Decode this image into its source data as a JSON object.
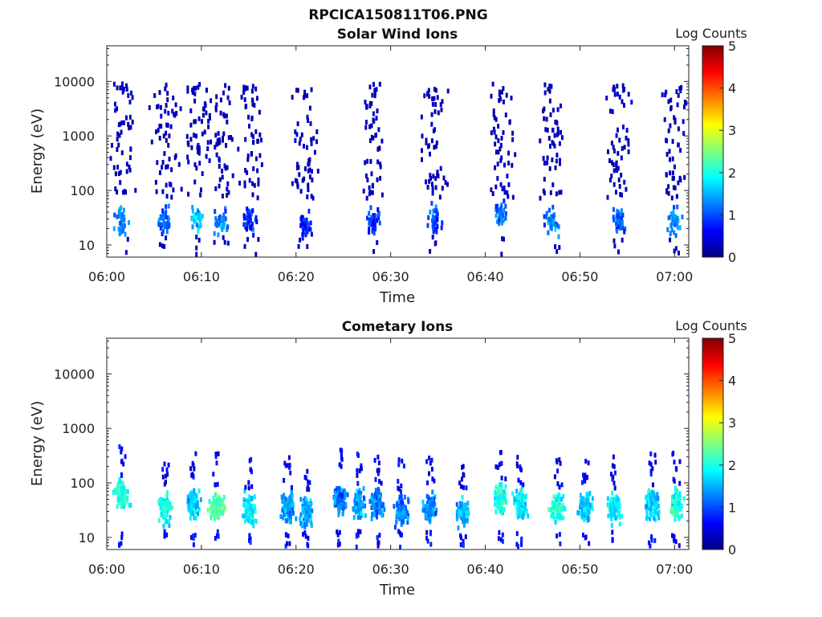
{
  "figure": {
    "title": "RPCICA150811T06.PNG"
  },
  "colormap": {
    "name": "jet",
    "stops": [
      "#00007f",
      "#0000ff",
      "#007fff",
      "#00ffff",
      "#7fff7f",
      "#ffff00",
      "#ff7f00",
      "#ff0000",
      "#7f0000"
    ]
  },
  "chart_data": [
    {
      "type": "heatmap",
      "title": "Solar Wind Ions",
      "xlabel": "Time",
      "ylabel": "Energy (eV)",
      "yscale": "log",
      "ylim": [
        6,
        45000
      ],
      "xlim_minutes": [
        0,
        61.5
      ],
      "xticks": [
        "06:00",
        "06:10",
        "06:20",
        "06:30",
        "06:40",
        "06:50",
        "07:00"
      ],
      "yticks": [
        "10",
        "100",
        "1000",
        "10000"
      ],
      "ytick_values": [
        10,
        100,
        1000,
        10000
      ],
      "colorbar": {
        "label": "Log Counts",
        "range": [
          0,
          5
        ],
        "ticks": [
          "0",
          "1",
          "2",
          "3",
          "4",
          "5"
        ]
      },
      "bursts": [
        {
          "t_min": 1.5,
          "energy_eV": 30,
          "log_counts": 1.3
        },
        {
          "t_min": 6.0,
          "energy_eV": 30,
          "log_counts": 1.1
        },
        {
          "t_min": 9.5,
          "energy_eV": 35,
          "log_counts": 1.6
        },
        {
          "t_min": 12.0,
          "energy_eV": 30,
          "log_counts": 1.2
        },
        {
          "t_min": 15.0,
          "energy_eV": 30,
          "log_counts": 0.8
        },
        {
          "t_min": 20.8,
          "energy_eV": 25,
          "log_counts": 0.7
        },
        {
          "t_min": 28.0,
          "energy_eV": 30,
          "log_counts": 0.8
        },
        {
          "t_min": 34.5,
          "energy_eV": 35,
          "log_counts": 1.0
        },
        {
          "t_min": 41.5,
          "energy_eV": 40,
          "log_counts": 1.2
        },
        {
          "t_min": 47.0,
          "energy_eV": 30,
          "log_counts": 1.2
        },
        {
          "t_min": 54.0,
          "energy_eV": 35,
          "log_counts": 1.0
        },
        {
          "t_min": 60.0,
          "energy_eV": 30,
          "log_counts": 1.3
        }
      ]
    },
    {
      "type": "heatmap",
      "title": "Cometary Ions",
      "xlabel": "Time",
      "ylabel": "Energy (eV)",
      "yscale": "log",
      "ylim": [
        6,
        45000
      ],
      "xlim_minutes": [
        0,
        61.5
      ],
      "xticks": [
        "06:00",
        "06:10",
        "06:20",
        "06:30",
        "06:40",
        "06:50",
        "07:00"
      ],
      "yticks": [
        "10",
        "100",
        "1000",
        "10000"
      ],
      "ytick_values": [
        10,
        100,
        1000,
        10000
      ],
      "colorbar": {
        "label": "Log Counts",
        "range": [
          0,
          5
        ],
        "ticks": [
          "0",
          "1",
          "2",
          "3",
          "4",
          "5"
        ]
      },
      "bursts": [
        {
          "t_min": 1.5,
          "energy_eV": 60,
          "log_counts": 2.0
        },
        {
          "t_min": 6.0,
          "energy_eV": 35,
          "log_counts": 1.9
        },
        {
          "t_min": 9.0,
          "energy_eV": 40,
          "log_counts": 1.7
        },
        {
          "t_min": 11.5,
          "energy_eV": 40,
          "log_counts": 2.3
        },
        {
          "t_min": 15.0,
          "energy_eV": 30,
          "log_counts": 1.8
        },
        {
          "t_min": 19.0,
          "energy_eV": 35,
          "log_counts": 1.3
        },
        {
          "t_min": 21.0,
          "energy_eV": 30,
          "log_counts": 1.5
        },
        {
          "t_min": 24.5,
          "energy_eV": 50,
          "log_counts": 1.2
        },
        {
          "t_min": 26.5,
          "energy_eV": 40,
          "log_counts": 1.4
        },
        {
          "t_min": 28.5,
          "energy_eV": 40,
          "log_counts": 1.3
        },
        {
          "t_min": 31.0,
          "energy_eV": 30,
          "log_counts": 1.2
        },
        {
          "t_min": 34.0,
          "energy_eV": 35,
          "log_counts": 1.3
        },
        {
          "t_min": 37.5,
          "energy_eV": 30,
          "log_counts": 1.5
        },
        {
          "t_min": 41.5,
          "energy_eV": 50,
          "log_counts": 2.0
        },
        {
          "t_min": 43.5,
          "energy_eV": 40,
          "log_counts": 1.8
        },
        {
          "t_min": 47.5,
          "energy_eV": 35,
          "log_counts": 2.0
        },
        {
          "t_min": 50.5,
          "energy_eV": 35,
          "log_counts": 1.6
        },
        {
          "t_min": 53.5,
          "energy_eV": 35,
          "log_counts": 1.8
        },
        {
          "t_min": 57.5,
          "energy_eV": 40,
          "log_counts": 1.7
        },
        {
          "t_min": 60.0,
          "energy_eV": 40,
          "log_counts": 2.0
        }
      ]
    }
  ]
}
